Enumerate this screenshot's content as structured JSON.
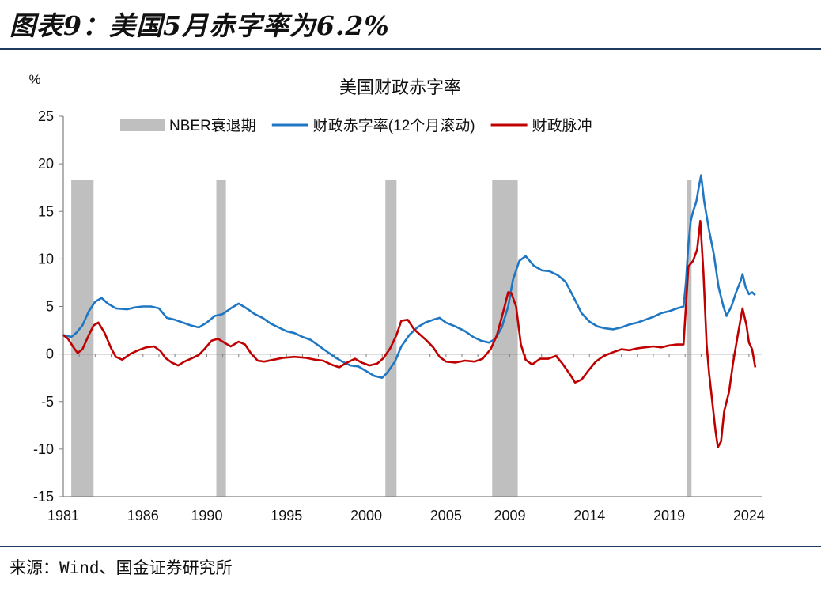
{
  "figure_title": "图表9：美国5月赤字率为6.2%",
  "source": "来源：Wind、国金证券研究所",
  "chart_data": {
    "type": "line",
    "title": "美国财政赤字率",
    "ylabel": "%",
    "ylim": [
      -15,
      25
    ],
    "yticks": [
      25,
      20,
      15,
      10,
      5,
      0,
      -5,
      -10,
      -15
    ],
    "xlim": [
      1981.0,
      2024.8
    ],
    "xticks": [
      1981,
      1986,
      1990,
      1995,
      2000,
      2005,
      2009,
      2014,
      2019,
      2024
    ],
    "grid": false,
    "legend_position": "top",
    "legend": [
      {
        "name": "NBER衰退期",
        "kind": "band",
        "color": "#bfbfbf"
      },
      {
        "name": "财政赤字率(12个月滚动)",
        "kind": "line",
        "color": "#1f77c4"
      },
      {
        "name": "财政脉冲",
        "kind": "line",
        "color": "#c00000"
      }
    ],
    "recessions": [
      [
        1981.5,
        1982.9
      ],
      [
        1990.6,
        1991.2
      ],
      [
        2001.2,
        2001.9
      ],
      [
        2007.9,
        2009.5
      ],
      [
        2020.1,
        2020.4
      ]
    ],
    "series": [
      {
        "name": "财政赤字率(12个月滚动)",
        "color": "#1f77c4",
        "points": [
          [
            1981.0,
            2.0
          ],
          [
            1981.5,
            1.8
          ],
          [
            1981.8,
            2.2
          ],
          [
            1982.2,
            3.0
          ],
          [
            1982.6,
            4.5
          ],
          [
            1983.0,
            5.5
          ],
          [
            1983.4,
            5.9
          ],
          [
            1983.8,
            5.3
          ],
          [
            1984.3,
            4.8
          ],
          [
            1985.0,
            4.7
          ],
          [
            1985.5,
            4.9
          ],
          [
            1986.0,
            5.0
          ],
          [
            1986.5,
            5.0
          ],
          [
            1987.0,
            4.8
          ],
          [
            1987.5,
            3.8
          ],
          [
            1988.0,
            3.6
          ],
          [
            1988.5,
            3.3
          ],
          [
            1989.0,
            3.0
          ],
          [
            1989.5,
            2.8
          ],
          [
            1990.0,
            3.3
          ],
          [
            1990.5,
            4.0
          ],
          [
            1991.0,
            4.2
          ],
          [
            1991.5,
            4.8
          ],
          [
            1992.0,
            5.3
          ],
          [
            1992.5,
            4.8
          ],
          [
            1993.0,
            4.2
          ],
          [
            1993.5,
            3.8
          ],
          [
            1994.0,
            3.2
          ],
          [
            1994.5,
            2.8
          ],
          [
            1995.0,
            2.4
          ],
          [
            1995.5,
            2.2
          ],
          [
            1996.0,
            1.8
          ],
          [
            1996.5,
            1.5
          ],
          [
            1997.0,
            0.9
          ],
          [
            1997.5,
            0.3
          ],
          [
            1998.0,
            -0.3
          ],
          [
            1998.5,
            -0.8
          ],
          [
            1999.0,
            -1.2
          ],
          [
            1999.5,
            -1.3
          ],
          [
            2000.0,
            -1.8
          ],
          [
            2000.5,
            -2.3
          ],
          [
            2001.0,
            -2.5
          ],
          [
            2001.3,
            -2.0
          ],
          [
            2001.8,
            -0.8
          ],
          [
            2002.2,
            0.8
          ],
          [
            2002.7,
            2.0
          ],
          [
            2003.2,
            2.8
          ],
          [
            2003.7,
            3.3
          ],
          [
            2004.2,
            3.6
          ],
          [
            2004.6,
            3.8
          ],
          [
            2005.0,
            3.3
          ],
          [
            2005.6,
            2.9
          ],
          [
            2006.2,
            2.4
          ],
          [
            2006.7,
            1.8
          ],
          [
            2007.2,
            1.4
          ],
          [
            2007.7,
            1.2
          ],
          [
            2008.1,
            1.6
          ],
          [
            2008.5,
            2.8
          ],
          [
            2008.9,
            5.0
          ],
          [
            2009.2,
            7.8
          ],
          [
            2009.6,
            9.8
          ],
          [
            2010.0,
            10.3
          ],
          [
            2010.5,
            9.3
          ],
          [
            2011.0,
            8.8
          ],
          [
            2011.5,
            8.7
          ],
          [
            2012.0,
            8.3
          ],
          [
            2012.5,
            7.6
          ],
          [
            2013.0,
            6.0
          ],
          [
            2013.5,
            4.3
          ],
          [
            2014.0,
            3.4
          ],
          [
            2014.5,
            2.9
          ],
          [
            2015.0,
            2.7
          ],
          [
            2015.5,
            2.6
          ],
          [
            2016.0,
            2.8
          ],
          [
            2016.5,
            3.1
          ],
          [
            2017.0,
            3.3
          ],
          [
            2017.5,
            3.6
          ],
          [
            2018.0,
            3.9
          ],
          [
            2018.5,
            4.3
          ],
          [
            2019.0,
            4.5
          ],
          [
            2019.5,
            4.8
          ],
          [
            2019.9,
            5.0
          ],
          [
            2020.05,
            7.5
          ],
          [
            2020.2,
            11.5
          ],
          [
            2020.35,
            14.0
          ],
          [
            2020.5,
            15.0
          ],
          [
            2020.7,
            16.0
          ],
          [
            2020.85,
            17.5
          ],
          [
            2021.0,
            18.8
          ],
          [
            2021.2,
            16.0
          ],
          [
            2021.5,
            13.0
          ],
          [
            2021.8,
            10.5
          ],
          [
            2022.1,
            7.0
          ],
          [
            2022.4,
            5.0
          ],
          [
            2022.6,
            4.0
          ],
          [
            2022.9,
            5.0
          ],
          [
            2023.2,
            6.5
          ],
          [
            2023.5,
            7.8
          ],
          [
            2023.6,
            8.4
          ],
          [
            2023.8,
            7.0
          ],
          [
            2024.0,
            6.3
          ],
          [
            2024.2,
            6.5
          ],
          [
            2024.4,
            6.2
          ]
        ]
      },
      {
        "name": "财政脉冲",
        "color": "#c00000",
        "points": [
          [
            1981.0,
            2.0
          ],
          [
            1981.3,
            1.6
          ],
          [
            1981.6,
            0.8
          ],
          [
            1981.9,
            0.1
          ],
          [
            1982.2,
            0.5
          ],
          [
            1982.6,
            2.0
          ],
          [
            1982.9,
            3.0
          ],
          [
            1983.2,
            3.3
          ],
          [
            1983.6,
            2.2
          ],
          [
            1984.0,
            0.6
          ],
          [
            1984.3,
            -0.3
          ],
          [
            1984.7,
            -0.6
          ],
          [
            1985.2,
            0.0
          ],
          [
            1985.7,
            0.4
          ],
          [
            1986.2,
            0.7
          ],
          [
            1986.7,
            0.8
          ],
          [
            1987.1,
            0.3
          ],
          [
            1987.4,
            -0.4
          ],
          [
            1987.8,
            -0.9
          ],
          [
            1988.2,
            -1.2
          ],
          [
            1988.6,
            -0.8
          ],
          [
            1989.0,
            -0.5
          ],
          [
            1989.5,
            -0.1
          ],
          [
            1989.9,
            0.6
          ],
          [
            1990.3,
            1.4
          ],
          [
            1990.7,
            1.6
          ],
          [
            1991.1,
            1.2
          ],
          [
            1991.5,
            0.8
          ],
          [
            1992.0,
            1.3
          ],
          [
            1992.4,
            1.0
          ],
          [
            1992.8,
            0.0
          ],
          [
            1993.2,
            -0.7
          ],
          [
            1993.6,
            -0.8
          ],
          [
            1994.2,
            -0.6
          ],
          [
            1994.8,
            -0.4
          ],
          [
            1995.5,
            -0.3
          ],
          [
            1996.2,
            -0.4
          ],
          [
            1996.8,
            -0.6
          ],
          [
            1997.3,
            -0.7
          ],
          [
            1997.8,
            -1.1
          ],
          [
            1998.3,
            -1.4
          ],
          [
            1998.8,
            -0.9
          ],
          [
            1999.3,
            -0.5
          ],
          [
            1999.7,
            -0.9
          ],
          [
            2000.2,
            -1.2
          ],
          [
            2000.7,
            -1.0
          ],
          [
            2001.1,
            -0.4
          ],
          [
            2001.5,
            0.6
          ],
          [
            2001.9,
            2.0
          ],
          [
            2002.2,
            3.5
          ],
          [
            2002.6,
            3.6
          ],
          [
            2003.0,
            2.6
          ],
          [
            2003.4,
            2.0
          ],
          [
            2003.8,
            1.4
          ],
          [
            2004.2,
            0.7
          ],
          [
            2004.6,
            -0.3
          ],
          [
            2005.0,
            -0.8
          ],
          [
            2005.6,
            -0.9
          ],
          [
            2006.2,
            -0.7
          ],
          [
            2006.8,
            -0.8
          ],
          [
            2007.3,
            -0.5
          ],
          [
            2007.8,
            0.5
          ],
          [
            2008.2,
            2.0
          ],
          [
            2008.6,
            4.5
          ],
          [
            2008.9,
            6.5
          ],
          [
            2009.1,
            6.4
          ],
          [
            2009.4,
            5.0
          ],
          [
            2009.7,
            1.0
          ],
          [
            2010.0,
            -0.6
          ],
          [
            2010.4,
            -1.1
          ],
          [
            2010.9,
            -0.5
          ],
          [
            2011.4,
            -0.5
          ],
          [
            2011.9,
            -0.2
          ],
          [
            2012.3,
            -1.0
          ],
          [
            2012.8,
            -2.2
          ],
          [
            2013.1,
            -3.0
          ],
          [
            2013.5,
            -2.7
          ],
          [
            2013.9,
            -1.8
          ],
          [
            2014.4,
            -0.8
          ],
          [
            2014.9,
            -0.2
          ],
          [
            2015.5,
            0.2
          ],
          [
            2016.0,
            0.5
          ],
          [
            2016.5,
            0.4
          ],
          [
            2017.0,
            0.6
          ],
          [
            2017.5,
            0.7
          ],
          [
            2018.0,
            0.8
          ],
          [
            2018.5,
            0.7
          ],
          [
            2019.0,
            0.9
          ],
          [
            2019.5,
            1.0
          ],
          [
            2019.9,
            1.0
          ],
          [
            2020.05,
            5.0
          ],
          [
            2020.2,
            9.2
          ],
          [
            2020.5,
            9.8
          ],
          [
            2020.75,
            11.0
          ],
          [
            2020.95,
            14.0
          ],
          [
            2021.15,
            8.5
          ],
          [
            2021.35,
            1.0
          ],
          [
            2021.5,
            -2.0
          ],
          [
            2021.7,
            -5.0
          ],
          [
            2021.9,
            -8.0
          ],
          [
            2022.05,
            -9.8
          ],
          [
            2022.25,
            -9.2
          ],
          [
            2022.45,
            -6.0
          ],
          [
            2022.75,
            -4.0
          ],
          [
            2023.0,
            -1.0
          ],
          [
            2023.3,
            2.0
          ],
          [
            2023.6,
            4.8
          ],
          [
            2023.85,
            3.0
          ],
          [
            2024.0,
            1.2
          ],
          [
            2024.2,
            0.5
          ],
          [
            2024.4,
            -1.4
          ]
        ]
      }
    ]
  }
}
